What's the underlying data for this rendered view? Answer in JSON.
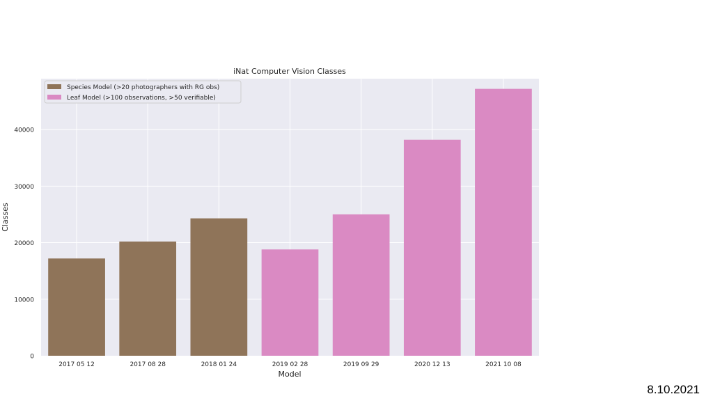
{
  "chart_data": {
    "type": "bar",
    "title": "iNat Computer Vision Classes",
    "xlabel": "Model",
    "ylabel": "Classes",
    "categories": [
      "2017 05 12",
      "2017 08 28",
      "2018 01 24",
      "2019 02 28",
      "2019 09 29",
      "2020 12 13",
      "2021 10 08"
    ],
    "values": [
      17200,
      20200,
      24300,
      18800,
      25000,
      38200,
      47200
    ],
    "series_index": [
      0,
      0,
      0,
      1,
      1,
      1,
      1
    ],
    "series": [
      {
        "name": "Species Model (>20 photographers with RG obs)",
        "color": "#8f7459"
      },
      {
        "name": "Leaf Model (>100 observations, >50 verifiable)",
        "color": "#da8ac3"
      }
    ],
    "ylim": [
      0,
      49000
    ],
    "yticks": [
      0,
      10000,
      20000,
      30000,
      40000
    ],
    "grid": true,
    "legend_position": "top-left",
    "background": "#eaeaf2"
  },
  "slide": {
    "date": "8.10.2021"
  }
}
